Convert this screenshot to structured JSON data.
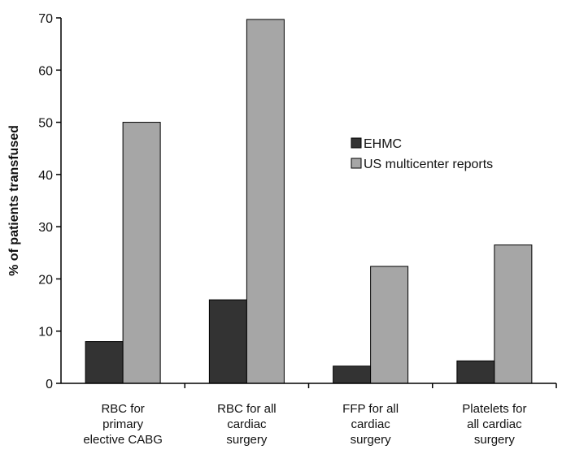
{
  "chart_data": {
    "type": "bar",
    "title": "",
    "xlabel": "",
    "ylabel": "% of patients transfused",
    "ylim": [
      0,
      70
    ],
    "yticks": [
      0,
      10,
      20,
      30,
      40,
      50,
      60,
      70
    ],
    "categories": [
      [
        "RBC for",
        "primary",
        "elective CABG"
      ],
      [
        "RBC for all",
        "cardiac",
        "surgery"
      ],
      [
        "FFP for all",
        "cardiac",
        "surgery"
      ],
      [
        "Platelets for",
        "all cardiac",
        "surgery"
      ]
    ],
    "series": [
      {
        "name": "EHMC",
        "color": "#333333",
        "values": [
          8,
          16,
          3.3,
          4.3
        ]
      },
      {
        "name": "US multicenter reports",
        "color": "#a6a6a6",
        "values": [
          50,
          69.7,
          22.4,
          26.5
        ]
      }
    ],
    "grid": false,
    "legend_position": "center-right"
  }
}
